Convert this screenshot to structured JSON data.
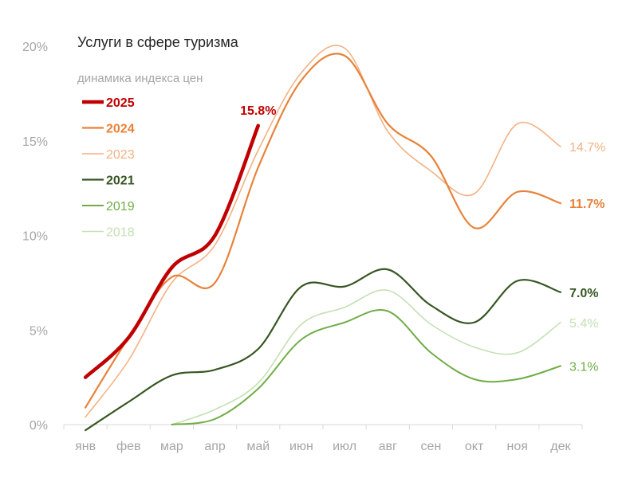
{
  "chart_data": {
    "type": "line",
    "title": "Услуги в сфере туризма",
    "subtitle": "динамика индекса цен",
    "xlabel": "",
    "ylabel": "",
    "categories": [
      "янв",
      "фев",
      "мар",
      "апр",
      "май",
      "июн",
      "июл",
      "авг",
      "сен",
      "окт",
      "ноя",
      "дек"
    ],
    "yticks": [
      "0%",
      "5%",
      "10%",
      "15%",
      "20%"
    ],
    "ylim": [
      0,
      20
    ],
    "grid": false,
    "legend_placement": "top-left",
    "series": [
      {
        "name": "2025",
        "color": "#c00000",
        "bold": true,
        "width": 4.5,
        "values": [
          2.5,
          4.6,
          8.3,
          10.0,
          15.8,
          null,
          null,
          null,
          null,
          null,
          null,
          null
        ],
        "end_label": "15.8%",
        "end_label_position": "above"
      },
      {
        "name": "2024",
        "color": "#e8823a",
        "bold": true,
        "width": 2.2,
        "values": [
          0.9,
          4.6,
          7.8,
          7.5,
          13.6,
          18.2,
          19.5,
          15.9,
          14.2,
          10.4,
          12.3,
          11.7
        ],
        "end_label": "11.7%"
      },
      {
        "name": "2023",
        "color": "#f4b183",
        "bold": false,
        "width": 1.6,
        "values": [
          0.4,
          3.4,
          7.5,
          9.5,
          14.5,
          18.6,
          19.9,
          15.5,
          13.4,
          12.2,
          15.9,
          14.7
        ],
        "end_label": "14.7%"
      },
      {
        "name": "2021",
        "color": "#375623",
        "bold": true,
        "width": 2.2,
        "values": [
          -0.3,
          1.2,
          2.6,
          2.9,
          4.0,
          7.3,
          7.3,
          8.2,
          6.3,
          5.4,
          7.6,
          7.0
        ],
        "end_label": "7.0%"
      },
      {
        "name": "2019",
        "color": "#70ad47",
        "bold": false,
        "width": 2.0,
        "values": [
          null,
          null,
          0.0,
          0.3,
          1.9,
          4.5,
          5.4,
          6.0,
          3.8,
          2.4,
          2.4,
          3.1
        ],
        "end_label": "3.1%"
      },
      {
        "name": "2018",
        "color": "#c5e0b4",
        "bold": false,
        "width": 1.6,
        "values": [
          null,
          null,
          0.0,
          0.8,
          2.2,
          5.3,
          6.2,
          7.1,
          5.3,
          4.1,
          3.8,
          5.4
        ],
        "end_label": "5.4%"
      }
    ]
  }
}
